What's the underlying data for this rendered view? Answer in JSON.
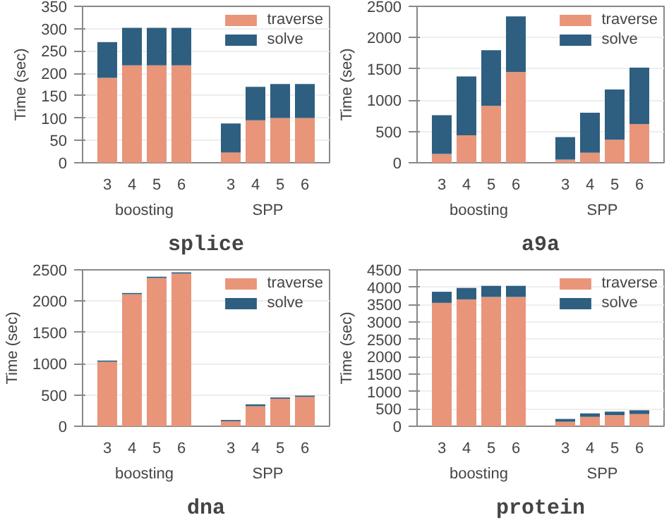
{
  "chart_data": [
    {
      "type": "bar",
      "title": "splice",
      "ylabel": "Time (sec)",
      "categories": [
        "3",
        "4",
        "5",
        "6",
        "3",
        "4",
        "5",
        "6"
      ],
      "annotations": [
        "boosting",
        "SPP"
      ],
      "stacked": true,
      "legend": "top right",
      "grid": "y",
      "ylim": [
        0,
        350
      ],
      "yticks": [
        0,
        50,
        100,
        150,
        200,
        250,
        300,
        350
      ],
      "series": [
        {
          "name": "traverse",
          "color": "#e8957a",
          "values": [
            190,
            218,
            218,
            218,
            23,
            95,
            100,
            100
          ]
        },
        {
          "name": "solve",
          "color": "#2e5f80",
          "values": [
            80,
            84,
            84,
            84,
            65,
            75,
            76,
            76
          ]
        }
      ]
    },
    {
      "type": "bar",
      "title": "a9a",
      "ylabel": "Time (sec)",
      "categories": [
        "3",
        "4",
        "5",
        "6",
        "3",
        "4",
        "5",
        "6"
      ],
      "annotations": [
        "boosting",
        "SPP"
      ],
      "stacked": true,
      "legend": "top right",
      "grid": "y",
      "ylim": [
        0,
        2500
      ],
      "yticks": [
        0,
        500,
        1000,
        1500,
        2000,
        2500
      ],
      "series": [
        {
          "name": "traverse",
          "color": "#e8957a",
          "values": [
            140,
            440,
            910,
            1450,
            50,
            160,
            370,
            620
          ]
        },
        {
          "name": "solve",
          "color": "#2e5f80",
          "values": [
            620,
            940,
            890,
            890,
            360,
            640,
            800,
            900
          ]
        }
      ]
    },
    {
      "type": "bar",
      "title": "dna",
      "ylabel": "Time (sec)",
      "categories": [
        "3",
        "4",
        "5",
        "6",
        "3",
        "4",
        "5",
        "6"
      ],
      "annotations": [
        "boosting",
        "SPP"
      ],
      "stacked": true,
      "legend": "top right",
      "grid": "y",
      "ylim": [
        0,
        2500
      ],
      "yticks": [
        0,
        500,
        1000,
        1500,
        2000,
        2500
      ],
      "series": [
        {
          "name": "traverse",
          "color": "#e8957a",
          "values": [
            1030,
            2110,
            2370,
            2440,
            80,
            320,
            440,
            470
          ]
        },
        {
          "name": "solve",
          "color": "#2e5f80",
          "values": [
            20,
            20,
            20,
            20,
            20,
            30,
            20,
            20
          ]
        }
      ]
    },
    {
      "type": "bar",
      "title": "protein",
      "ylabel": "Time (sec)",
      "categories": [
        "3",
        "4",
        "5",
        "6",
        "3",
        "4",
        "5",
        "6"
      ],
      "annotations": [
        "boosting",
        "SPP"
      ],
      "stacked": true,
      "legend": "top right",
      "grid": "y",
      "ylim": [
        0,
        4500
      ],
      "yticks": [
        0,
        500,
        1000,
        1500,
        2000,
        2500,
        3000,
        3500,
        4000,
        4500
      ],
      "series": [
        {
          "name": "traverse",
          "color": "#e8957a",
          "values": [
            3550,
            3650,
            3720,
            3720,
            130,
            270,
            320,
            350
          ]
        },
        {
          "name": "solve",
          "color": "#2e5f80",
          "values": [
            320,
            330,
            320,
            320,
            80,
            100,
            100,
            110
          ]
        }
      ]
    }
  ]
}
